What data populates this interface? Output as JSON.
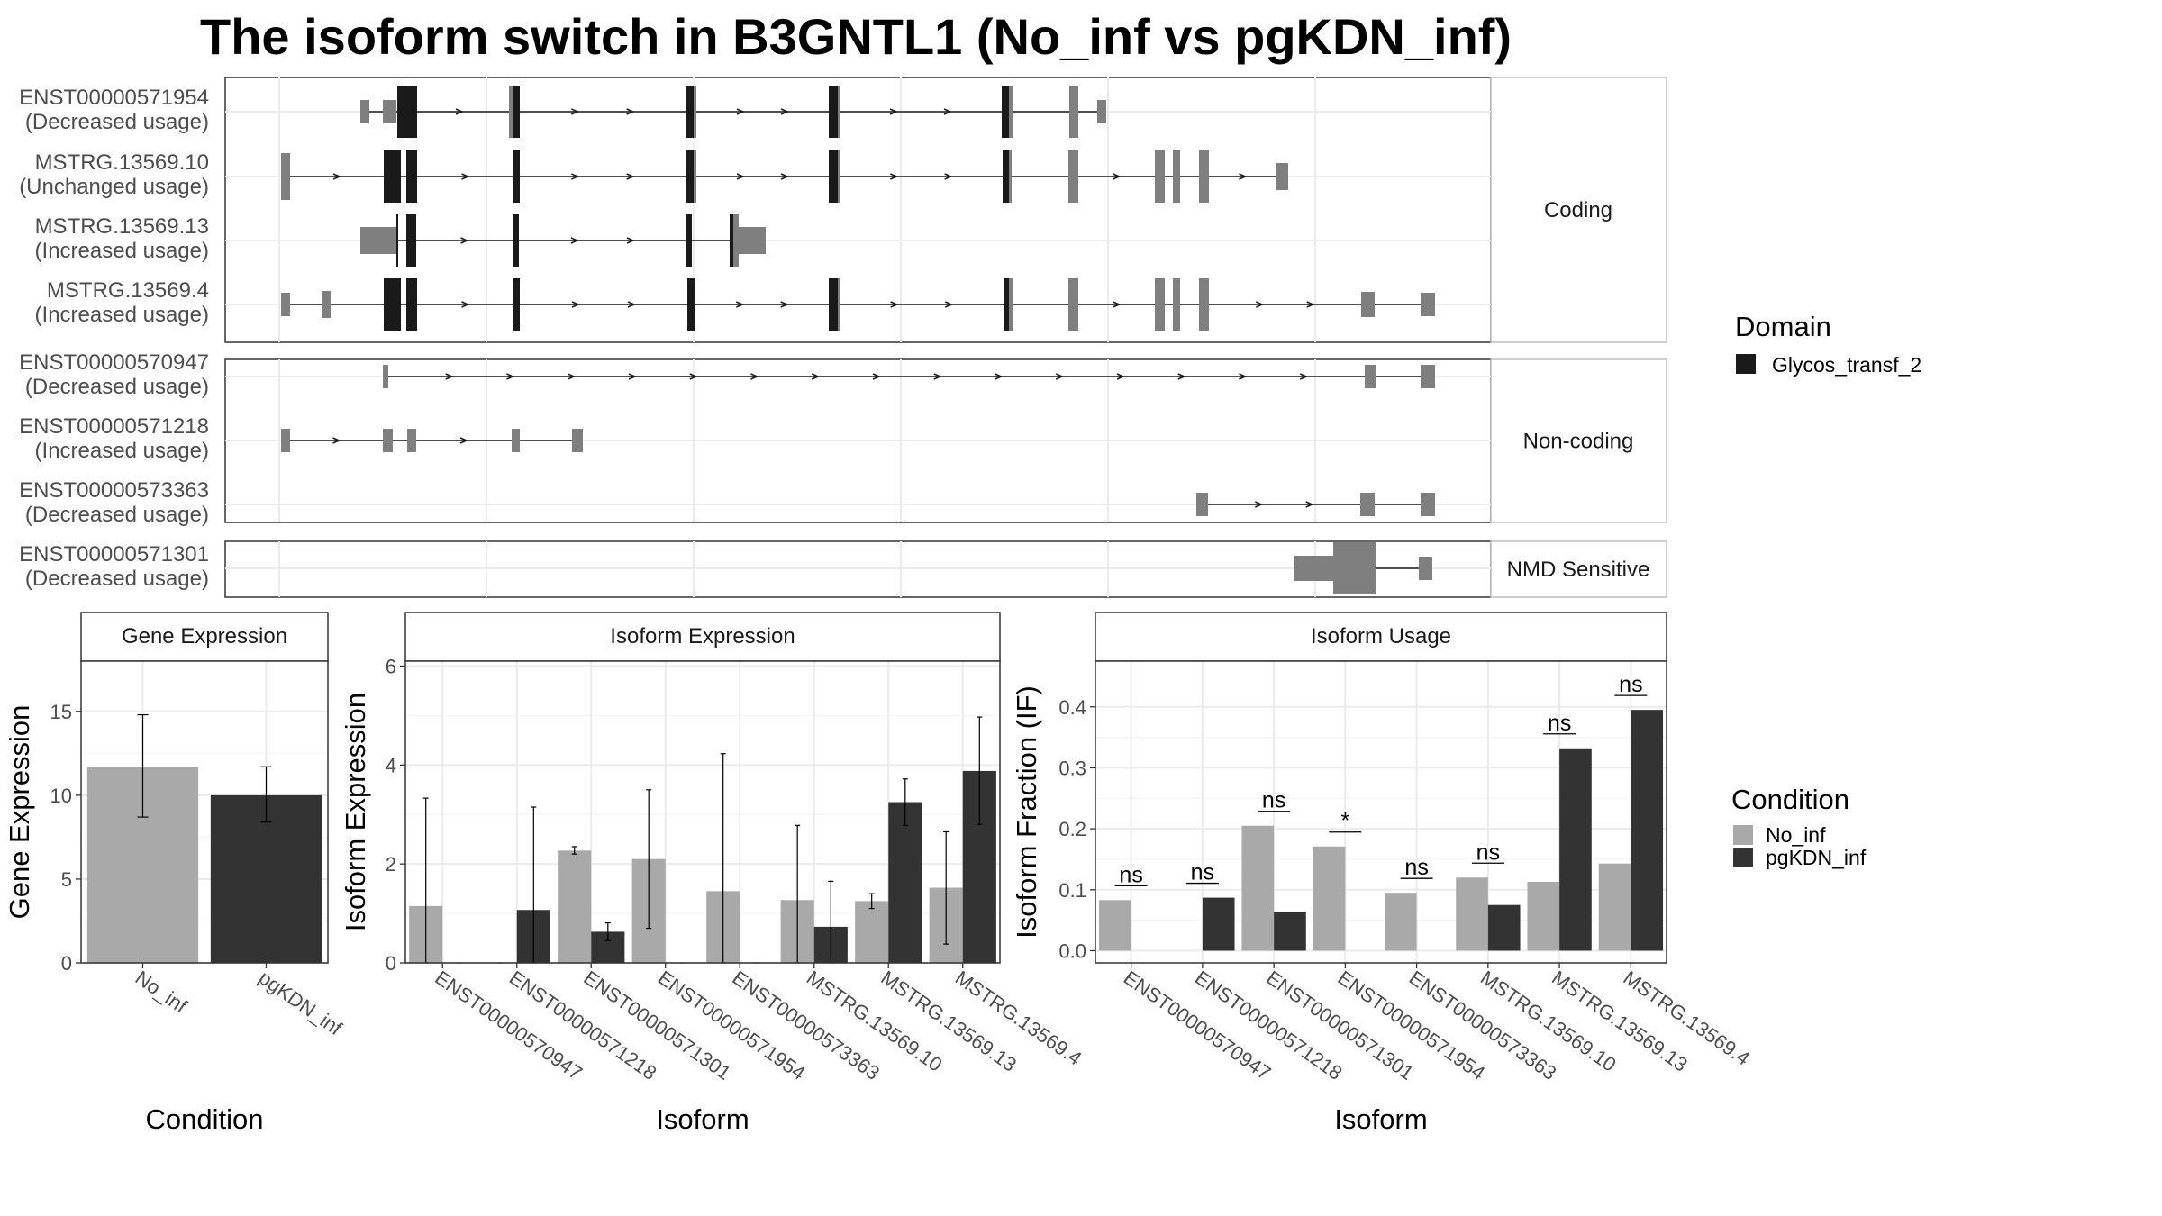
{
  "title": "The isoform switch in B3GNTL1 (No_inf vs pgKDN_inf)",
  "colors": {
    "no_inf": "#a9a9a9",
    "pgkdn_inf": "#333333",
    "exon": "#7f7f7f",
    "domain": "#1a1a1a",
    "grid": "#ebebeb",
    "frame": "#333333"
  },
  "structure": {
    "groups": [
      {
        "label": "Coding",
        "transcripts": [
          {
            "id": "ENST00000571954",
            "usage": "(Decreased usage)"
          },
          {
            "id": "MSTRG.13569.10",
            "usage": "(Unchanged usage)"
          },
          {
            "id": "MSTRG.13569.13",
            "usage": "(Increased usage)"
          },
          {
            "id": "MSTRG.13569.4",
            "usage": "(Increased usage)"
          }
        ]
      },
      {
        "label": "Non-coding",
        "transcripts": [
          {
            "id": "ENST00000570947",
            "usage": "(Decreased usage)"
          },
          {
            "id": "ENST00000571218",
            "usage": "(Increased usage)"
          },
          {
            "id": "ENST00000573363",
            "usage": "(Decreased usage)"
          }
        ]
      },
      {
        "label": "NMD Sensitive",
        "transcripts": [
          {
            "id": "ENST00000571301",
            "usage": "(Decreased usage)"
          }
        ]
      }
    ],
    "legend": {
      "title": "Domain",
      "items": [
        "Glycos_transf_2"
      ]
    }
  },
  "chart_data": [
    {
      "type": "bar",
      "panel": "Gene Expression",
      "categories": [
        "No_inf",
        "pgKDN_inf"
      ],
      "values": [
        11.7,
        10.0
      ],
      "errors": [
        [
          8.7,
          14.8
        ],
        [
          8.4,
          11.7
        ]
      ],
      "xlabel": "Condition",
      "ylabel": "Gene Expression",
      "ylim": [
        0,
        18
      ],
      "yticks": [
        0,
        5,
        10,
        15
      ]
    },
    {
      "type": "bar",
      "panel": "Isoform Expression",
      "categories": [
        "ENST00000570947",
        "ENST00000571218",
        "ENST00000571301",
        "ENST00000571954",
        "ENST00000573363",
        "MSTRG.13569.10",
        "MSTRG.13569.13",
        "MSTRG.13569.4"
      ],
      "series": [
        {
          "name": "No_inf",
          "values": [
            1.15,
            0.0,
            2.27,
            2.1,
            1.45,
            1.27,
            1.25,
            1.52
          ],
          "errors": [
            [
              0.0,
              3.33
            ],
            [
              0.0,
              0.0
            ],
            [
              2.2,
              2.35
            ],
            [
              0.7,
              3.5
            ],
            [
              0.0,
              4.23
            ],
            [
              0.0,
              2.78
            ],
            [
              1.1,
              1.4
            ],
            [
              0.38,
              2.65
            ]
          ]
        },
        {
          "name": "pgKDN_inf",
          "values": [
            0.0,
            1.07,
            0.63,
            0.0,
            0.0,
            0.73,
            3.25,
            3.88
          ],
          "errors": [
            [
              0.0,
              0.0
            ],
            [
              0.0,
              3.15
            ],
            [
              0.45,
              0.81
            ],
            [
              0.0,
              0.0
            ],
            [
              0.0,
              0.0
            ],
            [
              0.0,
              1.65
            ],
            [
              2.78,
              3.72
            ],
            [
              2.8,
              4.97
            ]
          ]
        }
      ],
      "xlabel": "Isoform",
      "ylabel": "Isoform Expression",
      "ylim": [
        0,
        6.1
      ],
      "yticks": [
        0,
        2,
        4,
        6
      ]
    },
    {
      "type": "bar",
      "panel": "Isoform Usage",
      "categories": [
        "ENST00000570947",
        "ENST00000571218",
        "ENST00000571301",
        "ENST00000571954",
        "ENST00000573363",
        "MSTRG.13569.10",
        "MSTRG.13569.13",
        "MSTRG.13569.4"
      ],
      "series": [
        {
          "name": "No_inf",
          "values": [
            0.083,
            0.0,
            0.205,
            0.171,
            0.095,
            0.12,
            0.113,
            0.143
          ]
        },
        {
          "name": "pgKDN_inf",
          "values": [
            0.0,
            0.087,
            0.063,
            0.0,
            0.0,
            0.075,
            0.332,
            0.395
          ]
        }
      ],
      "significance": [
        "ns",
        "ns",
        "ns",
        "*",
        "ns",
        "ns",
        "ns",
        "ns"
      ],
      "xlabel": "Isoform",
      "ylabel": "Isoform Fraction (IF)",
      "ylim": [
        -0.02,
        0.475
      ],
      "yticks": [
        0.0,
        0.1,
        0.2,
        0.3,
        0.4
      ],
      "ytick_labels": [
        "0.0",
        "0.1",
        "0.2",
        "0.3",
        "0.4"
      ]
    }
  ],
  "condition_legend": {
    "title": "Condition",
    "items": [
      "No_inf",
      "pgKDN_inf"
    ]
  }
}
